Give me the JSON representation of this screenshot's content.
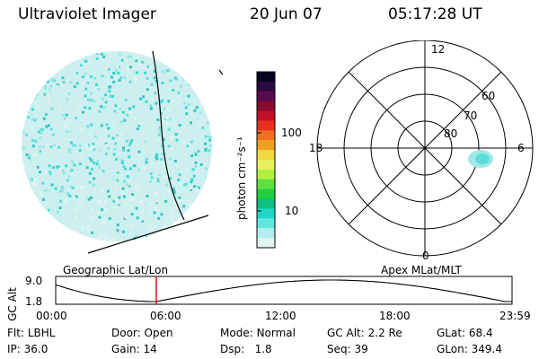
{
  "header": {
    "title": "Ultraviolet Imager",
    "date": "20 Jun 07",
    "time": "05:17:28 UT"
  },
  "panels": {
    "left_label": "Geographic Lat/Lon",
    "right_label": "Apex MLat/MLT"
  },
  "colorbar": {
    "unit_label": "photon cm⁻²s⁻¹",
    "ticks": [
      "100",
      "10"
    ],
    "colors": [
      "#050520",
      "#2a0a40",
      "#5a0a50",
      "#8a0a30",
      "#c0102a",
      "#e83020",
      "#f07020",
      "#f0a020",
      "#f0d840",
      "#e8f060",
      "#b0f040",
      "#60e040",
      "#20d040",
      "#10c080",
      "#20d8c8",
      "#60e8e0",
      "#b0f0f0",
      "#e0f4f4"
    ]
  },
  "polar": {
    "mlt_labels": [
      "12",
      "6",
      "0",
      "18"
    ],
    "lat_labels": [
      "60",
      "70",
      "80"
    ]
  },
  "timeline": {
    "ylabel": "GC Alt",
    "y_ticks": [
      "9.0",
      "1.8"
    ],
    "x_ticks": [
      "00:00",
      "06:00",
      "12:00",
      "18:00",
      "23:59"
    ],
    "current_fraction": 0.2204
  },
  "info": {
    "row1": [
      {
        "label": "Flt:",
        "value": "LBHL"
      },
      {
        "label": "Door:",
        "value": "Open"
      },
      {
        "label": "Mode:",
        "value": "Normal"
      },
      {
        "label": "GC Alt:",
        "value": "2.2 Re"
      },
      {
        "label": "GLat:",
        "value": "68.4"
      }
    ],
    "row2": [
      {
        "label": "IP:",
        "value": "36.0"
      },
      {
        "label": "Gain:",
        "value": "14"
      },
      {
        "label": "Dsp:",
        "value": "1.8"
      },
      {
        "label": "Seq:",
        "value": "39"
      },
      {
        "label": "GLon:",
        "value": "349.4"
      }
    ]
  }
}
